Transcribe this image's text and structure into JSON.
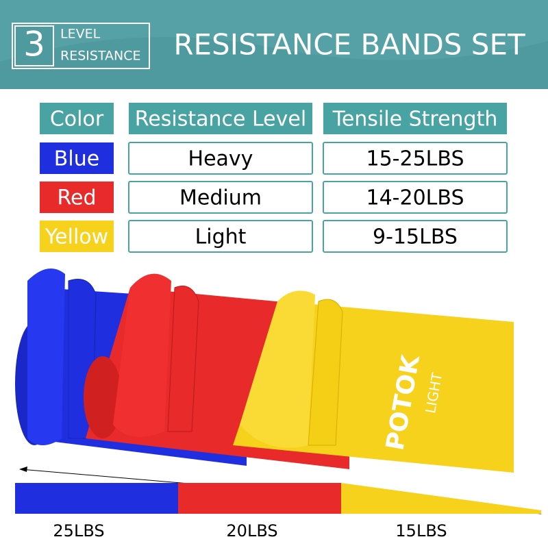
{
  "header": {
    "badge_number": 3,
    "badge_line1": "LEVEL",
    "badge_line2": "RESISTANCE",
    "title": "RESISTANCE BANDS SET"
  },
  "table": {
    "headers": [
      "Color",
      "Resistance Level",
      "Tensile Strength"
    ],
    "rows": [
      [
        "Blue",
        "Heavy",
        "15-25LBS"
      ],
      [
        "Red",
        "Medium",
        "14-20LBS"
      ],
      [
        "Yellow",
        "Light",
        "9-15LBS"
      ]
    ]
  },
  "band_print": {
    "brand": "POTOK",
    "level": "LIGHT"
  },
  "scale_labels": [
    "25LBS",
    "20LBS",
    "15LBS"
  ]
}
